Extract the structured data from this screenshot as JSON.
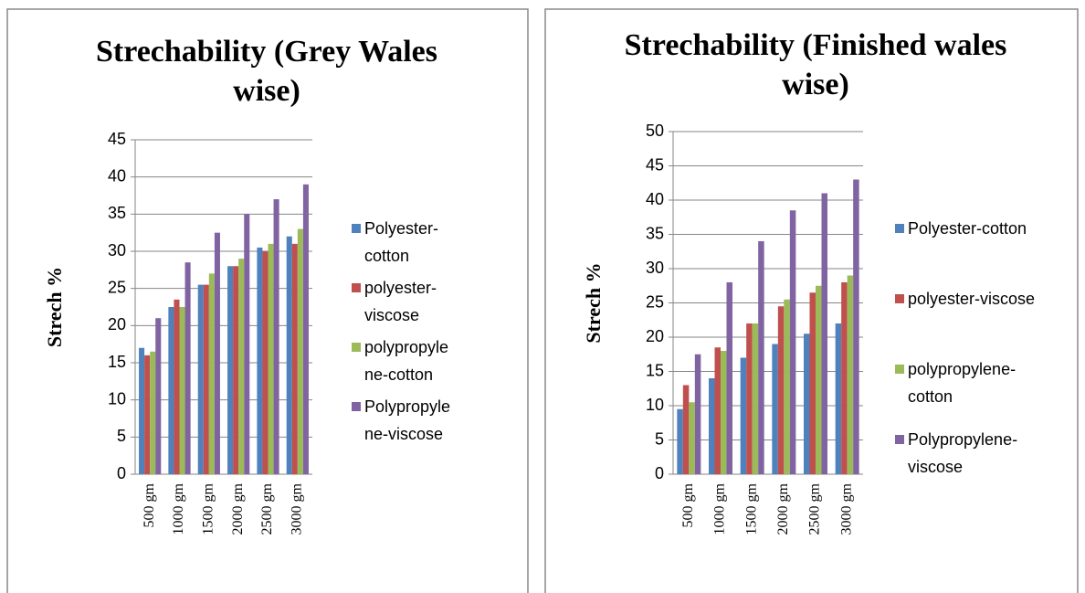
{
  "chart_data": [
    {
      "type": "bar",
      "title": "Strechability (Grey Wales wise)",
      "ylabel": "Strech %",
      "categories": [
        "500 gm",
        "1000 gm",
        "1500 gm",
        "2000 gm",
        "2500 gm",
        "3000 gm"
      ],
      "series": [
        {
          "name": "Polyester-cotton",
          "color": "#4f81bd",
          "values": [
            17,
            22.5,
            25.5,
            28,
            30.5,
            32
          ]
        },
        {
          "name": "polyester-viscose",
          "color": "#c0504d",
          "values": [
            16,
            23.5,
            25.5,
            28,
            30,
            31
          ]
        },
        {
          "name": "polypropylene-cotton",
          "color": "#9bbb59",
          "values": [
            16.5,
            22.5,
            27,
            29,
            31,
            33
          ]
        },
        {
          "name": "Polypropylene-viscose",
          "color": "#8064a2",
          "values": [
            21,
            28.5,
            32.5,
            35,
            37,
            39
          ]
        }
      ],
      "ylim": [
        0,
        45
      ],
      "yticks": [
        0,
        5,
        10,
        15,
        20,
        25,
        30,
        35,
        40,
        45
      ],
      "grid": true,
      "legend": "right"
    },
    {
      "type": "bar",
      "title": "Strechability (Finished wales wise)",
      "ylabel": "Strech %",
      "categories": [
        "500 gm",
        "1000 gm",
        "1500 gm",
        "2000 gm",
        "2500 gm",
        "3000 gm"
      ],
      "series": [
        {
          "name": "Polyester-cotton",
          "color": "#4f81bd",
          "values": [
            9.5,
            14,
            17,
            19,
            20.5,
            22
          ]
        },
        {
          "name": "polyester-viscose",
          "color": "#c0504d",
          "values": [
            13,
            18.5,
            22,
            24.5,
            26.5,
            28
          ]
        },
        {
          "name": "polypropylene-cotton",
          "color": "#9bbb59",
          "values": [
            10.5,
            18,
            22,
            25.5,
            27.5,
            29
          ]
        },
        {
          "name": "Polypropylene-viscose",
          "color": "#8064a2",
          "values": [
            17.5,
            28,
            34,
            38.5,
            41,
            43
          ]
        }
      ],
      "ylim": [
        0,
        50
      ],
      "yticks": [
        0,
        5,
        10,
        15,
        20,
        25,
        30,
        35,
        40,
        45,
        50
      ],
      "grid": true,
      "legend": "right"
    }
  ]
}
